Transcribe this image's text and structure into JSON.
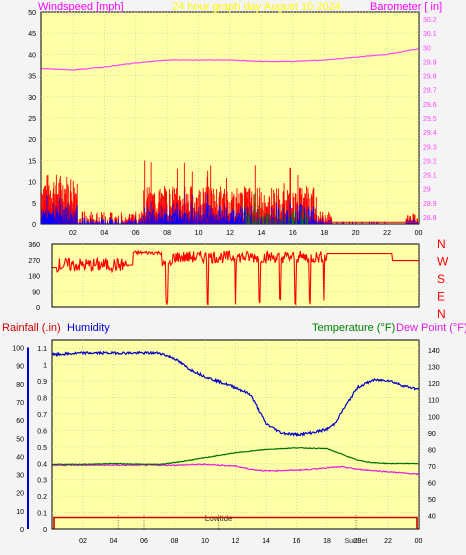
{
  "header": {
    "wind_label": "Windspeed [mph]",
    "title": "24 hour graph day   August 10 2024",
    "baro_label": "Barometer [ in]"
  },
  "middle": {
    "dir_labels": [
      "N",
      "W",
      "S",
      "E",
      "N"
    ]
  },
  "bottom": {
    "rain_label": "Rainfall (.in)",
    "humidity_label": "Humidity",
    "temp_label": "Temperature (°F)",
    "dew_label": "Dew Point (°F)",
    "lowtide_label": "Lowtide",
    "sunset_label": "SunSet"
  },
  "colors": {
    "plot_bg": "#ffffa8",
    "wind": "#ff0000",
    "gust": "#0000ff",
    "wind_low": "#008000",
    "barometer": "#ff44ff",
    "direction": "#ff0000",
    "humidity": "#0000c8",
    "temperature": "#007000",
    "dewpoint": "#e020e0",
    "rainfall": "#cc0000",
    "header_pink": "#ff00ff",
    "header_yellow": "#ffff00",
    "temp_label": "#008000",
    "rain_label": "#cc0000",
    "humidity_label": "#0000c8"
  },
  "chart_data": [
    {
      "type": "line",
      "name_ref": "wind-barometer",
      "x_ticks": [
        "02",
        "04",
        "06",
        "08",
        "10",
        "12",
        "14",
        "16",
        "18",
        "20",
        "22",
        "00"
      ],
      "y_left_ticks": [
        "0",
        "5",
        "10",
        "15",
        "20",
        "25",
        "30",
        "35",
        "40",
        "45",
        "50"
      ],
      "y_left_range": [
        0,
        50
      ],
      "y_right_ticks": [
        "28.8",
        "28.9",
        "29",
        "29.1",
        "29.2",
        "29.3",
        "29.4",
        "29.5",
        "29.6",
        "29.7",
        "29.8",
        "29.9",
        "30",
        "30.1",
        "30.2"
      ],
      "y_right_range": [
        28.75,
        30.25
      ],
      "barometer": {
        "x": [
          0,
          2,
          4,
          6,
          8,
          10,
          12,
          14,
          16,
          18,
          20,
          22,
          24
        ],
        "y": [
          29.85,
          29.84,
          29.86,
          29.89,
          29.91,
          29.91,
          29.91,
          29.9,
          29.9,
          29.91,
          29.93,
          29.95,
          29.99
        ]
      }
    },
    {
      "type": "line",
      "name_ref": "wind-direction",
      "x_ticks": [
        "02",
        "04",
        "06",
        "08",
        "10",
        "12",
        "14",
        "16",
        "18",
        "20",
        "22",
        "00"
      ],
      "y_ticks": [
        "0",
        "90",
        "180",
        "270",
        "360"
      ],
      "y_range": [
        0,
        360
      ]
    },
    {
      "type": "line",
      "name_ref": "temperature-humidity",
      "x_ticks": [
        "02",
        "04",
        "06",
        "08",
        "10",
        "12",
        "14",
        "16",
        "18",
        "20",
        "22",
        "00"
      ],
      "y_rain_ticks": [
        "0",
        "0.1",
        "0.2",
        "0.3",
        "0.4",
        "0.5",
        "0.6",
        "0.7",
        "0.8",
        "0.9",
        "1",
        "1.1"
      ],
      "y_rain_range": [
        0,
        1.15
      ],
      "y_humidity_ticks": [
        "0",
        "10",
        "20",
        "30",
        "40",
        "50",
        "60",
        "70",
        "80",
        "90",
        "100"
      ],
      "y_temp_ticks": [
        "40",
        "50",
        "60",
        "70",
        "80",
        "90",
        "100",
        "110",
        "120",
        "130",
        "140"
      ],
      "y_temp_range": [
        32,
        146
      ],
      "humidity": {
        "x": [
          0,
          2,
          4,
          6,
          7,
          8,
          9,
          10,
          11,
          12,
          13,
          14,
          15,
          16,
          17,
          18,
          18.5,
          19,
          20,
          21,
          22,
          23,
          24
        ],
        "y": [
          96,
          97,
          97,
          97,
          97,
          94,
          88,
          84,
          81,
          78,
          74,
          58,
          53,
          52,
          53,
          55,
          58,
          65,
          78,
          82,
          82,
          79,
          77
        ]
      },
      "temperature": {
        "x": [
          0,
          2,
          4,
          6,
          7,
          8,
          10,
          12,
          14,
          16,
          18,
          19,
          20,
          21,
          22,
          24
        ],
        "y": [
          71,
          71,
          71.5,
          71,
          71,
          72,
          75,
          78,
          80,
          81,
          80.5,
          77,
          73.5,
          72,
          71.5,
          71.5
        ]
      },
      "dewpoint": {
        "x": [
          0,
          2,
          4,
          6,
          8,
          10,
          12,
          13,
          14,
          16,
          17,
          18,
          19,
          20,
          22,
          24
        ],
        "y": [
          70.5,
          70.5,
          70.5,
          70.5,
          70.5,
          71,
          70,
          68,
          67,
          67.5,
          68,
          69,
          69.5,
          68,
          66.5,
          65
        ]
      },
      "rainfall": {
        "x": [
          0,
          24
        ],
        "y": [
          0.07,
          0.07
        ]
      }
    }
  ]
}
